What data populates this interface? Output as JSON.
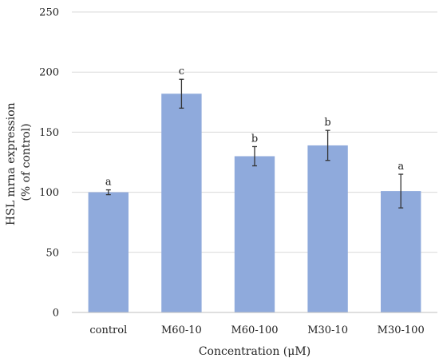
{
  "chart_data": {
    "type": "bar",
    "categories": [
      "control",
      "M60-10",
      "M60-100",
      "M30-10",
      "M30-100"
    ],
    "values": [
      100,
      182,
      130,
      139,
      101
    ],
    "error": [
      2,
      12,
      8,
      12.5,
      14
    ],
    "significance_letters": [
      "a",
      "c",
      "b",
      "b",
      "a"
    ],
    "xlabel": "Concentration (μM)",
    "ylabel_lines": [
      "HSL mrna expression",
      "(% of control)"
    ],
    "ylim": [
      0,
      250
    ],
    "yticks": [
      0,
      50,
      100,
      150,
      200,
      250
    ],
    "grid": true,
    "legend": "none",
    "bar_color": "#8faadc",
    "error_color": "#333333"
  }
}
